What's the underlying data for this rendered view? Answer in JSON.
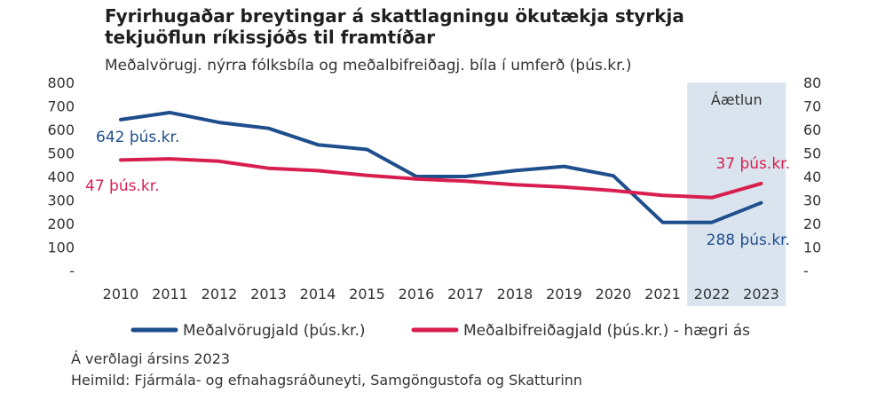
{
  "title_line1": "Fyrirhugaðar breytingar á skattlagningu ökutækja styrkja",
  "title_line2": "tekjuöflun ríkissjóðs til framtíðar",
  "subtitle": "Meðalvörugj. nýrra fólksbíla og meðalbifreiðagj. bíla í umferð (þús.kr.)",
  "footnote1": "Á verðlagi ársins 2023",
  "footnote2": "Heimild: Fjármála- og efnahagsráðuneyti, Samgöngustofa og Skatturinn",
  "colors": {
    "blue": "#1f4e8c",
    "red": "#d81e4f",
    "forecast_band": "#d9e4ee"
  },
  "chart_data": {
    "type": "line",
    "x": [
      "2010",
      "2011",
      "2012",
      "2013",
      "2014",
      "2015",
      "2016",
      "2017",
      "2018",
      "2019",
      "2020",
      "2021",
      "2022",
      "2023"
    ],
    "series": [
      {
        "name": "Meðalvörugjald (þús.kr.)",
        "axis": "left",
        "color": "#1f4e8c",
        "values": [
          642,
          672,
          630,
          605,
          535,
          515,
          400,
          400,
          425,
          443,
          403,
          205,
          205,
          288
        ]
      },
      {
        "name": "Meðalbifreiðagjald (þús.kr.) - hægri ás",
        "axis": "right",
        "color": "#d81e4f",
        "values": [
          47,
          47.5,
          46.5,
          43.5,
          42.5,
          40.5,
          39,
          38,
          36.5,
          35.5,
          34,
          32,
          31,
          37
        ]
      }
    ],
    "left_ticks": [
      "-",
      "100",
      "200",
      "300",
      "400",
      "500",
      "600",
      "700",
      "800"
    ],
    "right_ticks": [
      "-",
      "10",
      "20",
      "30",
      "40",
      "50",
      "60",
      "70",
      "80"
    ],
    "ylim_left": [
      0,
      800
    ],
    "ylim_right": [
      0,
      80
    ],
    "forecast": {
      "label": "Áætlun",
      "from": "2022",
      "to": "2023"
    },
    "annotations": [
      {
        "text": "642 þús.kr.",
        "series": 0,
        "color": "#1f4e8c"
      },
      {
        "text": "47  þús.kr.",
        "series": 1,
        "color": "#d81e4f"
      },
      {
        "text": "37 þús.kr.",
        "series": 1,
        "color": "#d81e4f"
      },
      {
        "text": "288 þús.kr.",
        "series": 0,
        "color": "#1f4e8c"
      }
    ],
    "legend_position": "bottom",
    "grid": false
  }
}
